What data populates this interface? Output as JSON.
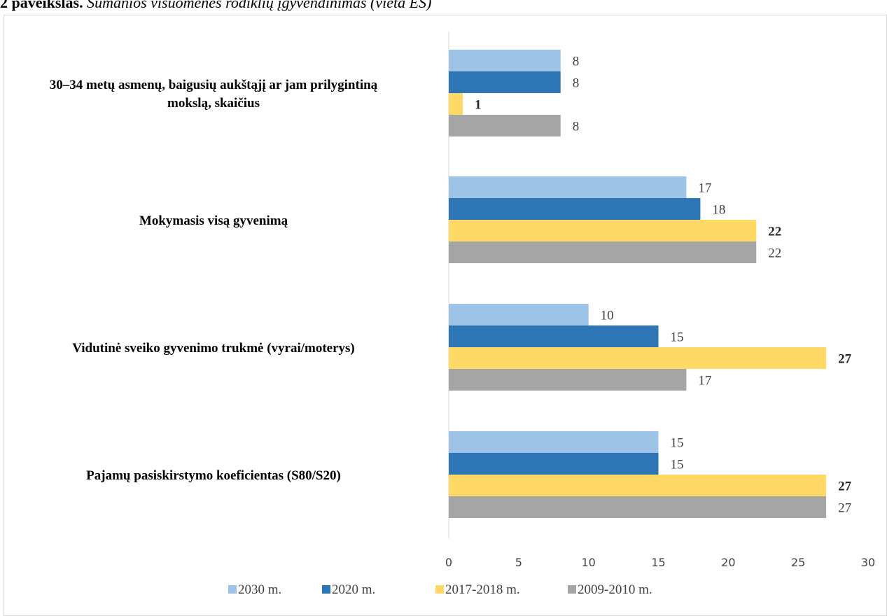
{
  "caption": {
    "label": "2 paveikslas.",
    "text": "Sumanios visuomenės rodiklių įgyvendinimas (vieta ES)"
  },
  "chart_data": {
    "type": "bar",
    "orientation": "horizontal",
    "categories": [
      [
        "30–34 metų asmenų, baigusių aukštąjį ar jam prilygintiną",
        "mokslą, skaičius"
      ],
      [
        "Mokymasis visą gyvenimą"
      ],
      [
        "Vidutinė sveiko gyvenimo trukmė (vyrai/moterys)"
      ],
      [
        "Pajamų pasiskirstymo koeficientas (S80/S20)"
      ]
    ],
    "series": [
      {
        "name": "2030 m.",
        "color": "#9dc3e6",
        "values": [
          8,
          17,
          10,
          15
        ],
        "label_bold": false
      },
      {
        "name": "2020 m.",
        "color": "#2e75b6",
        "values": [
          8,
          18,
          15,
          15
        ],
        "label_bold": false
      },
      {
        "name": "2017-2018 m.",
        "color": "#ffd966",
        "values": [
          1,
          22,
          27,
          27
        ],
        "label_bold": true
      },
      {
        "name": "2009-2010 m.",
        "color": "#a5a5a5",
        "values": [
          8,
          22,
          17,
          27
        ],
        "label_bold": false
      }
    ],
    "xlim": [
      0,
      30
    ],
    "xticks": [
      0,
      5,
      10,
      15,
      20,
      25,
      30
    ],
    "grid": false,
    "legend_position": "bottom"
  }
}
